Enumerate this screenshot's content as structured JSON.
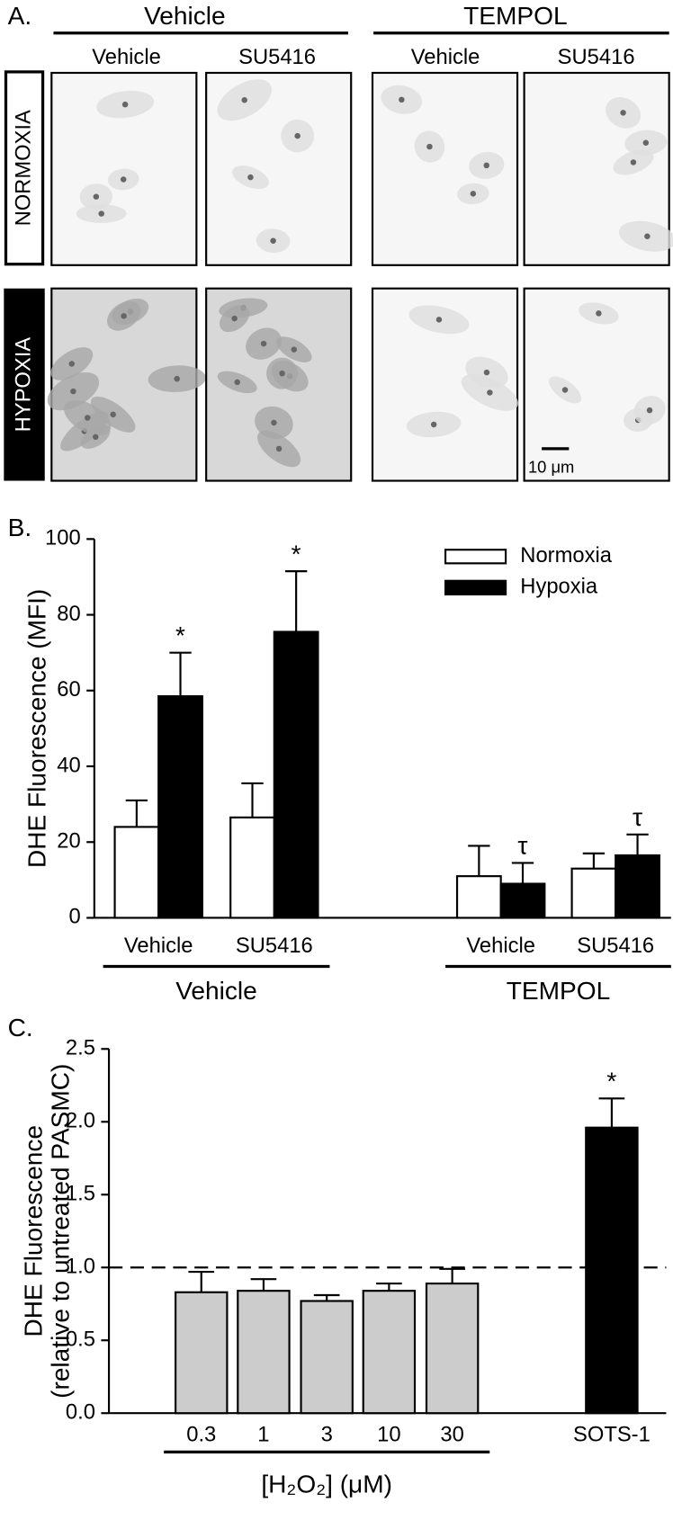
{
  "panel_a": {
    "panel_label": "A.",
    "groups": [
      "Vehicle",
      "TEMPOL"
    ],
    "columns": [
      "Vehicle",
      "SU5416",
      "Vehicle",
      "SU5416"
    ],
    "rows": [
      "NORMOXIA",
      "HYPOXIA"
    ],
    "scale_bar": "10 μm"
  },
  "chart_data": [
    {
      "type": "bar",
      "panel_label": "B.",
      "y_label": [
        "DHE Fluorescence (MFI)"
      ],
      "categories": [
        "Vehicle",
        "SU5416",
        "Vehicle",
        "SU5416"
      ],
      "category_groups": [
        "Vehicle",
        "Vehicle",
        "TEMPOL",
        "TEMPOL"
      ],
      "series": [
        {
          "name": "Normoxia",
          "color": "#ffffff",
          "values": [
            24,
            26.5,
            11,
            13
          ],
          "errors": [
            7,
            9,
            8,
            4
          ]
        },
        {
          "name": "Hypoxia",
          "color": "#000000",
          "values": [
            58.5,
            75.5,
            9,
            16.5
          ],
          "errors": [
            11.5,
            16,
            5.5,
            5.5
          ],
          "markers": [
            "*",
            "*",
            "τ",
            "τ"
          ]
        }
      ],
      "ylim": [
        0,
        100
      ],
      "yticks": [
        0,
        20,
        40,
        60,
        80,
        100
      ],
      "legend": "top-right"
    },
    {
      "type": "bar",
      "panel_label": "C.",
      "y_label": [
        "DHE Fluorescence",
        "(relative to untreated PASMC)"
      ],
      "categories": [
        "0.3",
        "1",
        "3",
        "10",
        "30",
        "SOTS-1"
      ],
      "category_groups": [
        "[H₂O₂] (μM)",
        "[H₂O₂] (μM)",
        "[H₂O₂] (μM)",
        "[H₂O₂] (μM)",
        "[H₂O₂] (μM)",
        null
      ],
      "series": [
        {
          "colors": [
            "#cccccc",
            "#cccccc",
            "#cccccc",
            "#cccccc",
            "#cccccc",
            "#000000"
          ],
          "values": [
            0.83,
            0.84,
            0.77,
            0.84,
            0.89,
            1.96
          ],
          "errors": [
            0.14,
            0.08,
            0.04,
            0.05,
            0.1,
            0.2
          ],
          "markers": [
            null,
            null,
            null,
            null,
            null,
            "*"
          ]
        }
      ],
      "reference_line": 1.0,
      "ylim": [
        0,
        2.5
      ],
      "yticks": [
        {
          "value": 0,
          "label": "0.0"
        },
        {
          "value": 0.5,
          "label": "0.5"
        },
        {
          "value": 1,
          "label": "1.0"
        },
        {
          "value": 1.5,
          "label": "1.5"
        },
        {
          "value": 2,
          "label": "2.0"
        },
        {
          "value": 2.5,
          "label": "2.5"
        }
      ]
    }
  ]
}
